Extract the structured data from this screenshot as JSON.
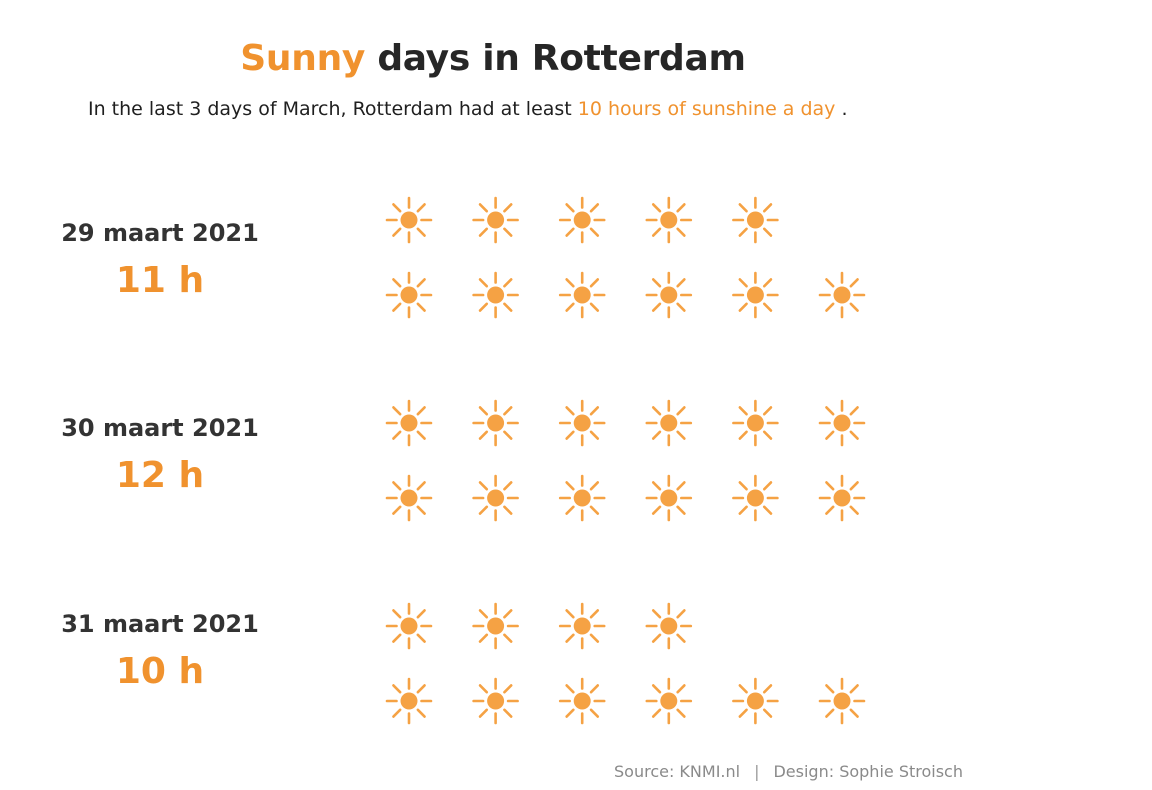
{
  "title": {
    "accent": "Sunny",
    "rest": "days in Rotterdam"
  },
  "subtitle": {
    "before": "In the last 3 days of March, Rotterdam had at least",
    "highlight": "10 hours of sunshine a day",
    "after": "."
  },
  "chart_data": {
    "type": "pictogram",
    "unit_icon": "sun-icon",
    "icon_value_hours": 1,
    "accent_color": "#F0922E",
    "icon_color": "#F5A244",
    "categories": [
      "29 maart 2021",
      "30 maart 2021",
      "31 maart 2021"
    ],
    "values": [
      11,
      12,
      10
    ],
    "value_labels": [
      "11 h",
      "12 h",
      "10 h"
    ],
    "value_unit": "h",
    "icons_per_row": 6
  },
  "footer": {
    "source": "Source: KNMI.nl",
    "separator": "|",
    "design": "Design: Sophie Stroisch"
  }
}
